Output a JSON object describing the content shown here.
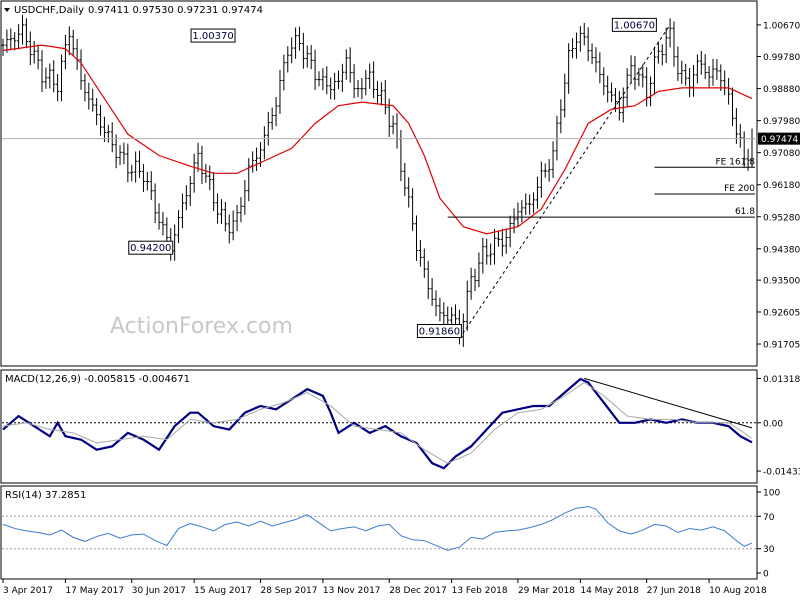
{
  "header": {
    "symbol": "USDCHF,Daily",
    "ohlc": "0.97411 0.97530 0.97231 0.97474"
  },
  "watermark": "ActionForex.com",
  "colors": {
    "candle": "#000000",
    "ma": "#e00000",
    "macd": "#000080",
    "signal": "#a8a8a8",
    "rsi": "#3a7bd5",
    "level": "#000000",
    "watermark": "#c8c8c8"
  },
  "x_axis": {
    "ticks": [
      "3 Apr 2017",
      "17 May 2017",
      "30 Jun 2017",
      "15 Aug 2017",
      "28 Sep 2017",
      "13 Nov 2017",
      "28 Dec 2017",
      "13 Feb 2018",
      "29 Mar 2018",
      "14 May 2018",
      "27 Jun 2018",
      "10 Aug 2018"
    ]
  },
  "chart_data": [
    {
      "type": "ohlc",
      "title": "USDCHF,Daily",
      "ylim": [
        0.912,
        1.012
      ],
      "yticks": [
        "1.00670",
        "0.99780",
        "0.98880",
        "0.97980",
        "0.97080",
        "0.96180",
        "0.95280",
        "0.94380",
        "0.93500",
        "0.92605",
        "0.91705"
      ],
      "current_price": "0.97474",
      "ohlc_anchors": [
        {
          "i": 0,
          "c": 1.001
        },
        {
          "i": 5,
          "c": 1.005
        },
        {
          "i": 10,
          "c": 0.993
        },
        {
          "i": 14,
          "c": 0.99
        },
        {
          "i": 17,
          "c": 1.005
        },
        {
          "i": 20,
          "c": 0.991
        },
        {
          "i": 24,
          "c": 0.981
        },
        {
          "i": 28,
          "c": 0.973
        },
        {
          "i": 32,
          "c": 0.967
        },
        {
          "i": 36,
          "c": 0.965
        },
        {
          "i": 40,
          "c": 0.952
        },
        {
          "i": 43,
          "c": 0.944
        },
        {
          "i": 46,
          "c": 0.956
        },
        {
          "i": 50,
          "c": 0.97
        },
        {
          "i": 54,
          "c": 0.958
        },
        {
          "i": 57,
          "c": 0.95
        },
        {
          "i": 60,
          "c": 0.952
        },
        {
          "i": 63,
          "c": 0.966
        },
        {
          "i": 66,
          "c": 0.972
        },
        {
          "i": 70,
          "c": 0.985
        },
        {
          "i": 73,
          "c": 1.0
        },
        {
          "i": 76,
          "c": 1.002
        },
        {
          "i": 78,
          "c": 0.997
        },
        {
          "i": 82,
          "c": 0.99
        },
        {
          "i": 86,
          "c": 0.99
        },
        {
          "i": 88,
          "c": 0.998
        },
        {
          "i": 90,
          "c": 0.988
        },
        {
          "i": 94,
          "c": 0.992
        },
        {
          "i": 97,
          "c": 0.986
        },
        {
          "i": 100,
          "c": 0.978
        },
        {
          "i": 103,
          "c": 0.962
        },
        {
          "i": 106,
          "c": 0.945
        },
        {
          "i": 109,
          "c": 0.933
        },
        {
          "i": 112,
          "c": 0.925
        },
        {
          "i": 115,
          "c": 0.925
        },
        {
          "i": 117,
          "c": 0.92
        },
        {
          "i": 120,
          "c": 0.935
        },
        {
          "i": 123,
          "c": 0.942
        },
        {
          "i": 126,
          "c": 0.945
        },
        {
          "i": 129,
          "c": 0.947
        },
        {
          "i": 132,
          "c": 0.955
        },
        {
          "i": 135,
          "c": 0.956
        },
        {
          "i": 138,
          "c": 0.964
        },
        {
          "i": 141,
          "c": 0.97
        },
        {
          "i": 143,
          "c": 0.985
        },
        {
          "i": 145,
          "c": 0.997
        },
        {
          "i": 147,
          "c": 1.004
        },
        {
          "i": 150,
          "c": 1.001
        },
        {
          "i": 152,
          "c": 0.995
        },
        {
          "i": 155,
          "c": 0.988
        },
        {
          "i": 158,
          "c": 0.983
        },
        {
          "i": 161,
          "c": 0.995
        },
        {
          "i": 163,
          "c": 0.992
        },
        {
          "i": 165,
          "c": 0.988
        },
        {
          "i": 168,
          "c": 0.999
        },
        {
          "i": 171,
          "c": 1.004
        },
        {
          "i": 173,
          "c": 0.994
        },
        {
          "i": 176,
          "c": 0.99
        },
        {
          "i": 178,
          "c": 0.996
        },
        {
          "i": 181,
          "c": 0.993
        },
        {
          "i": 184,
          "c": 0.993
        },
        {
          "i": 186,
          "c": 0.985
        },
        {
          "i": 188,
          "c": 0.978
        },
        {
          "i": 190,
          "c": 0.968
        },
        {
          "i": 191,
          "c": 0.971
        },
        {
          "i": 192,
          "c": 0.9747
        }
      ],
      "moving_average": [
        [
          0,
          0.9995
        ],
        [
          10,
          1.001
        ],
        [
          16,
          1.0
        ],
        [
          20,
          0.996
        ],
        [
          26,
          0.986
        ],
        [
          32,
          0.976
        ],
        [
          40,
          0.97
        ],
        [
          48,
          0.967
        ],
        [
          54,
          0.965
        ],
        [
          60,
          0.965
        ],
        [
          66,
          0.968
        ],
        [
          74,
          0.972
        ],
        [
          80,
          0.979
        ],
        [
          86,
          0.984
        ],
        [
          92,
          0.985
        ],
        [
          100,
          0.984
        ],
        [
          104,
          0.979
        ],
        [
          108,
          0.97
        ],
        [
          112,
          0.958
        ],
        [
          118,
          0.95
        ],
        [
          124,
          0.948
        ],
        [
          132,
          0.95
        ],
        [
          138,
          0.955
        ],
        [
          144,
          0.966
        ],
        [
          150,
          0.979
        ],
        [
          156,
          0.983
        ],
        [
          162,
          0.984
        ],
        [
          168,
          0.988
        ],
        [
          174,
          0.989
        ],
        [
          180,
          0.989
        ],
        [
          186,
          0.989
        ],
        [
          192,
          0.986
        ]
      ],
      "annotations": [
        {
          "label": "1.00370",
          "i": 60,
          "price": 1.0037
        },
        {
          "label": "0.94200",
          "i": 43,
          "price": 0.942
        },
        {
          "label": "0.91860",
          "i": 117,
          "price": 0.9186
        },
        {
          "label": "1.00670",
          "i": 168,
          "price": 1.0067
        }
      ],
      "levels": [
        {
          "label": "FE 161.8",
          "price": 0.9667,
          "from": 167
        },
        {
          "label": "FE 200",
          "price": 0.9592,
          "from": 167
        },
        {
          "label": "61.8",
          "price": 0.9527,
          "from": 114
        }
      ],
      "trendline": [
        [
          117,
          0.9186
        ],
        [
          171,
          1.0067
        ]
      ]
    },
    {
      "type": "line",
      "title": "MACD(12,26,9) -0.005815 -0.004671",
      "ylim": [
        -0.017,
        0.0145
      ],
      "yticks": [
        "0.013184",
        "0.00",
        "-0.014339"
      ],
      "series": [
        {
          "role": "macd",
          "points": [
            [
              0,
              -0.002
            ],
            [
              4,
              0.002
            ],
            [
              8,
              -0.001
            ],
            [
              12,
              -0.004
            ],
            [
              14,
              0.0
            ],
            [
              16,
              -0.004
            ],
            [
              20,
              -0.005
            ],
            [
              24,
              -0.008
            ],
            [
              28,
              -0.007
            ],
            [
              32,
              -0.003
            ],
            [
              36,
              -0.005
            ],
            [
              40,
              -0.008
            ],
            [
              44,
              -0.001
            ],
            [
              48,
              0.003
            ],
            [
              50,
              0.003
            ],
            [
              54,
              -0.001
            ],
            [
              58,
              -0.002
            ],
            [
              62,
              0.003
            ],
            [
              66,
              0.005
            ],
            [
              70,
              0.004
            ],
            [
              74,
              0.007
            ],
            [
              78,
              0.01
            ],
            [
              82,
              0.008
            ],
            [
              84,
              0.003
            ],
            [
              86,
              -0.003
            ],
            [
              90,
              0.0
            ],
            [
              94,
              -0.003
            ],
            [
              98,
              -0.001
            ],
            [
              102,
              -0.004
            ],
            [
              106,
              -0.006
            ],
            [
              110,
              -0.012
            ],
            [
              113,
              -0.0135
            ],
            [
              116,
              -0.01
            ],
            [
              120,
              -0.007
            ],
            [
              124,
              -0.002
            ],
            [
              128,
              0.003
            ],
            [
              132,
              0.004
            ],
            [
              136,
              0.005
            ],
            [
              140,
              0.005
            ],
            [
              144,
              0.009
            ],
            [
              148,
              0.013
            ],
            [
              150,
              0.012
            ],
            [
              154,
              0.006
            ],
            [
              158,
              0.0
            ],
            [
              162,
              0.0
            ],
            [
              166,
              0.001
            ],
            [
              170,
              0.0
            ],
            [
              174,
              0.001
            ],
            [
              178,
              0.0
            ],
            [
              182,
              0.0
            ],
            [
              186,
              -0.001
            ],
            [
              189,
              -0.004
            ],
            [
              192,
              -0.0058
            ]
          ]
        },
        {
          "role": "signal",
          "points": [
            [
              0,
              -0.001
            ],
            [
              6,
              0.0
            ],
            [
              12,
              -0.002
            ],
            [
              18,
              -0.003
            ],
            [
              24,
              -0.006
            ],
            [
              30,
              -0.005
            ],
            [
              36,
              -0.004
            ],
            [
              42,
              -0.005
            ],
            [
              48,
              0.001
            ],
            [
              54,
              0.0
            ],
            [
              60,
              0.001
            ],
            [
              66,
              0.004
            ],
            [
              72,
              0.006
            ],
            [
              78,
              0.009
            ],
            [
              84,
              0.005
            ],
            [
              90,
              -0.001
            ],
            [
              96,
              -0.002
            ],
            [
              102,
              -0.003
            ],
            [
              108,
              -0.008
            ],
            [
              114,
              -0.012
            ],
            [
              120,
              -0.009
            ],
            [
              126,
              -0.002
            ],
            [
              132,
              0.003
            ],
            [
              138,
              0.004
            ],
            [
              144,
              0.008
            ],
            [
              149,
              0.012
            ],
            [
              154,
              0.008
            ],
            [
              160,
              0.002
            ],
            [
              166,
              0.001
            ],
            [
              172,
              0.001
            ],
            [
              178,
              0.0
            ],
            [
              186,
              0.0
            ],
            [
              190,
              -0.003
            ],
            [
              192,
              -0.0047
            ]
          ]
        },
        {
          "role": "trendline",
          "points": [
            [
              149,
              0.0132
            ],
            [
              192,
              -0.0015
            ]
          ]
        }
      ]
    },
    {
      "type": "line",
      "title": "RSI(14) 37.2851",
      "ylim": [
        0,
        100
      ],
      "yticks": [
        "100",
        "70",
        "30",
        "0"
      ],
      "levels": [
        70,
        30
      ],
      "series": [
        {
          "role": "rsi",
          "points": [
            [
              0,
              60
            ],
            [
              3,
              55
            ],
            [
              6,
              52
            ],
            [
              9,
              50
            ],
            [
              12,
              47
            ],
            [
              15,
              53
            ],
            [
              18,
              44
            ],
            [
              21,
              39
            ],
            [
              24,
              45
            ],
            [
              27,
              49
            ],
            [
              30,
              43
            ],
            [
              33,
              47
            ],
            [
              36,
              48
            ],
            [
              39,
              40
            ],
            [
              42,
              34
            ],
            [
              45,
              55
            ],
            [
              48,
              61
            ],
            [
              51,
              57
            ],
            [
              54,
              52
            ],
            [
              57,
              60
            ],
            [
              60,
              63
            ],
            [
              63,
              58
            ],
            [
              66,
              64
            ],
            [
              69,
              58
            ],
            [
              72,
              62
            ],
            [
              75,
              66
            ],
            [
              78,
              72
            ],
            [
              81,
              62
            ],
            [
              84,
              52
            ],
            [
              87,
              55
            ],
            [
              90,
              57
            ],
            [
              93,
              52
            ],
            [
              96,
              58
            ],
            [
              99,
              60
            ],
            [
              102,
              46
            ],
            [
              105,
              41
            ],
            [
              108,
              40
            ],
            [
              111,
              34
            ],
            [
              114,
              28
            ],
            [
              117,
              32
            ],
            [
              120,
              44
            ],
            [
              123,
              42
            ],
            [
              126,
              50
            ],
            [
              129,
              52
            ],
            [
              132,
              53
            ],
            [
              135,
              56
            ],
            [
              138,
              60
            ],
            [
              141,
              66
            ],
            [
              144,
              74
            ],
            [
              147,
              80
            ],
            [
              150,
              82
            ],
            [
              152,
              79
            ],
            [
              155,
              62
            ],
            [
              158,
              52
            ],
            [
              161,
              48
            ],
            [
              164,
              53
            ],
            [
              167,
              60
            ],
            [
              170,
              58
            ],
            [
              173,
              50
            ],
            [
              176,
              55
            ],
            [
              179,
              53
            ],
            [
              182,
              57
            ],
            [
              185,
              52
            ],
            [
              188,
              40
            ],
            [
              190,
              33
            ],
            [
              191,
              35
            ],
            [
              192,
              37
            ]
          ]
        }
      ]
    }
  ]
}
